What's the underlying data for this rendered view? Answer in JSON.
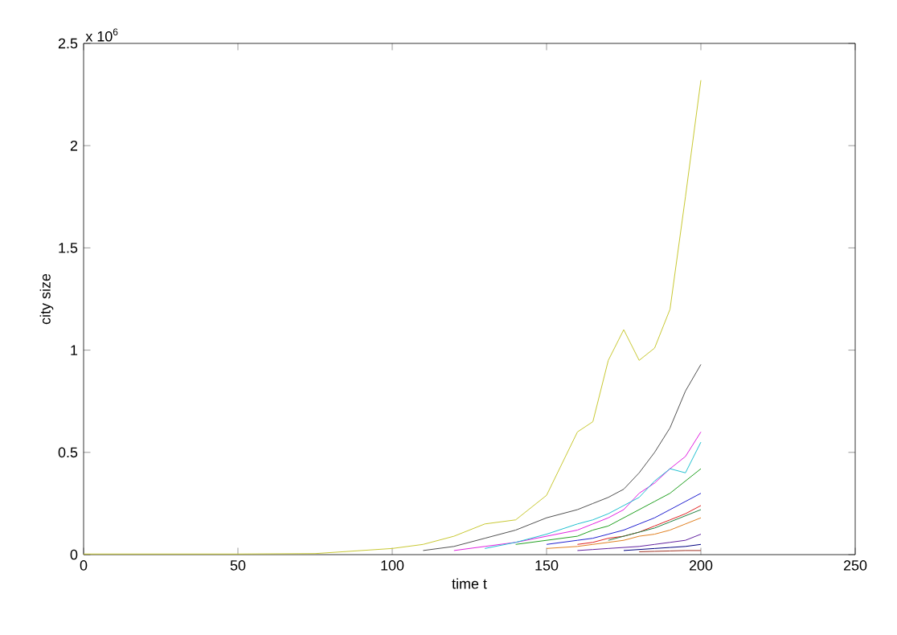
{
  "chart_data": {
    "type": "line",
    "xlabel": "time t",
    "ylabel": "city size",
    "annotations": [
      "x 10$^{6}$"
    ],
    "x": [
      0,
      50,
      75,
      100,
      110,
      120,
      130,
      140,
      150,
      160,
      165,
      170,
      175,
      180,
      185,
      190,
      195,
      200
    ],
    "xlim": [
      0,
      250
    ],
    "xticks": [
      0,
      50,
      100,
      150,
      200,
      250
    ],
    "ylim": [
      0,
      2.5
    ],
    "yticks": [
      0,
      0.5,
      1,
      1.5,
      2,
      2.5
    ],
    "grid": false,
    "marker": "none",
    "line_style": "solid",
    "series": [
      {
        "color": "#c8c832",
        "values": [
          0.003,
          0.003,
          0.005,
          0.03,
          0.05,
          0.09,
          0.15,
          0.17,
          0.29,
          0.6,
          0.65,
          0.95,
          1.1,
          0.95,
          1.01,
          1.2,
          1.75,
          2.32
        ]
      },
      {
        "color": "#505050",
        "values": [
          null,
          null,
          null,
          null,
          0.02,
          0.04,
          0.08,
          0.12,
          0.18,
          0.22,
          0.25,
          0.28,
          0.32,
          0.4,
          0.5,
          0.62,
          0.8,
          0.93
        ]
      },
      {
        "color": "#e020e0",
        "values": [
          null,
          null,
          null,
          null,
          null,
          0.02,
          0.04,
          0.06,
          0.09,
          0.12,
          0.15,
          0.18,
          0.22,
          0.3,
          0.35,
          0.42,
          0.48,
          0.6
        ]
      },
      {
        "color": "#20c0d0",
        "values": [
          null,
          null,
          null,
          null,
          null,
          null,
          0.03,
          0.06,
          0.1,
          0.15,
          0.17,
          0.2,
          0.24,
          0.28,
          0.36,
          0.42,
          0.4,
          0.55
        ]
      },
      {
        "color": "#20a020",
        "values": [
          null,
          null,
          null,
          null,
          null,
          null,
          null,
          0.05,
          0.07,
          0.09,
          0.12,
          0.14,
          0.18,
          0.22,
          0.26,
          0.3,
          0.36,
          0.42
        ]
      },
      {
        "color": "#2020d0",
        "values": [
          null,
          null,
          null,
          null,
          null,
          null,
          null,
          null,
          0.05,
          0.07,
          0.08,
          0.1,
          0.12,
          0.15,
          0.18,
          0.22,
          0.26,
          0.3
        ]
      },
      {
        "color": "#e02020",
        "values": [
          null,
          null,
          null,
          null,
          null,
          null,
          null,
          null,
          null,
          0.05,
          0.06,
          0.08,
          0.09,
          0.11,
          0.14,
          0.17,
          0.2,
          0.24
        ]
      },
      {
        "color": "#e08020",
        "values": [
          null,
          null,
          null,
          null,
          null,
          null,
          null,
          null,
          0.03,
          0.04,
          0.05,
          0.06,
          0.07,
          0.09,
          0.1,
          0.12,
          0.15,
          0.18
        ]
      },
      {
        "color": "#208040",
        "values": [
          null,
          null,
          null,
          null,
          null,
          null,
          null,
          null,
          null,
          null,
          null,
          0.07,
          0.09,
          0.11,
          0.13,
          0.16,
          0.19,
          0.22
        ]
      },
      {
        "color": "#6020a0",
        "values": [
          null,
          null,
          null,
          null,
          null,
          null,
          null,
          null,
          null,
          0.02,
          0.025,
          0.03,
          0.035,
          0.04,
          0.05,
          0.06,
          0.07,
          0.1
        ]
      },
      {
        "color": "#000080",
        "values": [
          null,
          null,
          null,
          null,
          null,
          null,
          null,
          null,
          null,
          null,
          null,
          null,
          0.02,
          0.025,
          0.03,
          0.035,
          0.04,
          0.05
        ]
      },
      {
        "color": "#a03020",
        "values": [
          null,
          null,
          null,
          null,
          null,
          null,
          null,
          null,
          null,
          null,
          null,
          null,
          null,
          0.014,
          0.016,
          0.018,
          0.02,
          0.02
        ]
      }
    ]
  }
}
